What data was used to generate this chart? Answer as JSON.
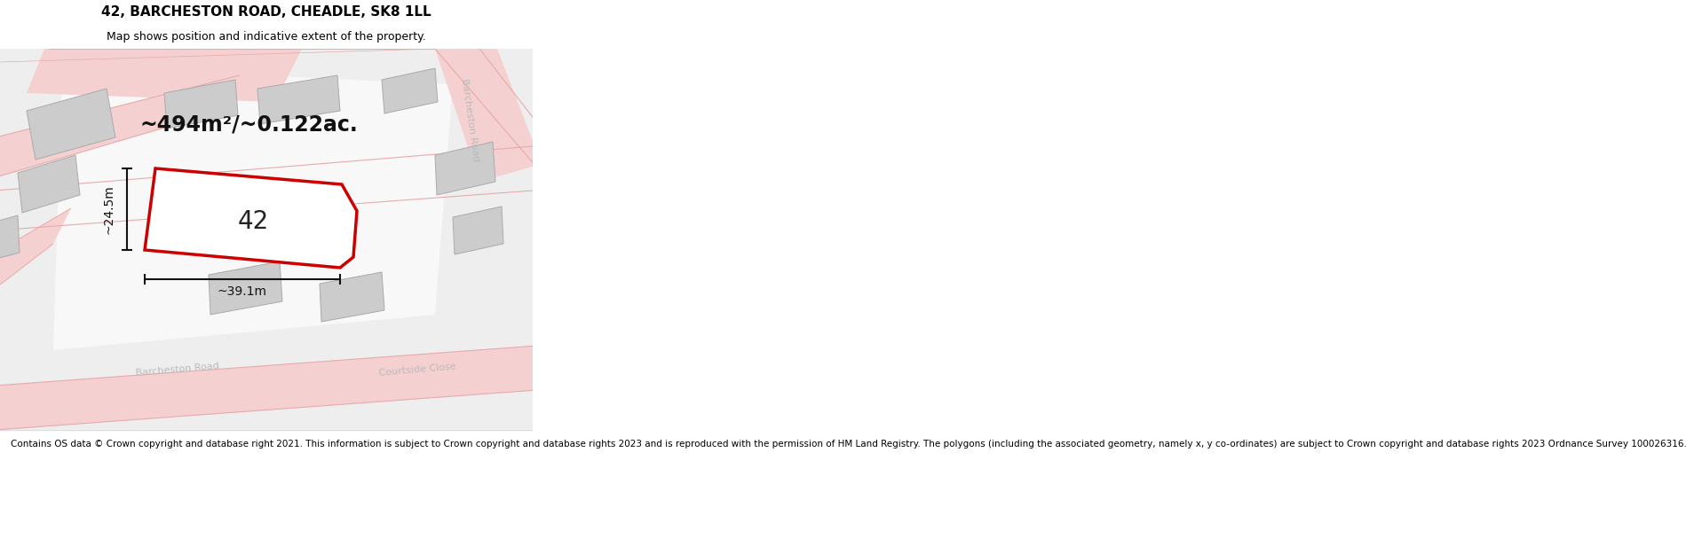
{
  "title": "42, BARCHESTON ROAD, CHEADLE, SK8 1LL",
  "subtitle": "Map shows position and indicative extent of the property.",
  "area_text": "~494m²/~0.122ac.",
  "label_42": "42",
  "dim_width": "~39.1m",
  "dim_height": "~24.5m",
  "footer": "Contains OS data © Crown copyright and database right 2021. This information is subject to Crown copyright and database rights 2023 and is reproduced with the permission of HM Land Registry. The polygons (including the associated geometry, namely x, y co-ordinates) are subject to Crown copyright and database rights 2023 Ordnance Survey 100026316.",
  "map_bg": "#f0f0f0",
  "road_fill": "#f5d0d0",
  "road_line": "#e8aaaa",
  "building_fill": "#cccccc",
  "building_edge": "#aaaaaa",
  "plot_color": "#cc0000",
  "dim_color": "#111111",
  "title_fontsize": 11,
  "subtitle_fontsize": 9,
  "area_fontsize": 17,
  "label_fontsize": 20,
  "dim_fontsize": 10,
  "footer_fontsize": 7.5,
  "road_label_color": "#bbbbbb",
  "road_label_size": 8
}
